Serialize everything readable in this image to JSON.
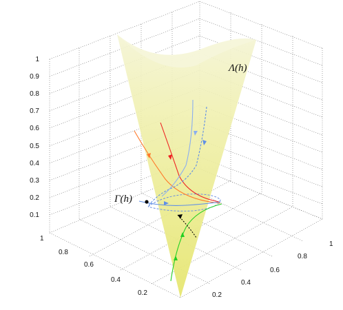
{
  "figure": {
    "labels": {
      "lambda": "Λ(h)",
      "gamma": "Γ(h)"
    },
    "z_ticks": [
      "1",
      "0.9",
      "0.8",
      "0.7",
      "0.6",
      "0.5",
      "0.4",
      "0.3",
      "0.2",
      "0.1"
    ],
    "left_ticks": [
      "1",
      "0.8",
      "0.6",
      "0.4",
      "0.2"
    ],
    "right_ticks": [
      "1",
      "0.8",
      "0.6",
      "0.4",
      "0.2"
    ],
    "colors": {
      "surface_top": "#f3f3c8",
      "surface_bottom": "#eaea7a",
      "grid": "#666666",
      "red": "#ee2222",
      "orange": "#ff7a2a",
      "blue": "#5f8fe6",
      "light_blue": "#8aaef0",
      "green": "#22d022",
      "black": "#000000"
    }
  }
}
